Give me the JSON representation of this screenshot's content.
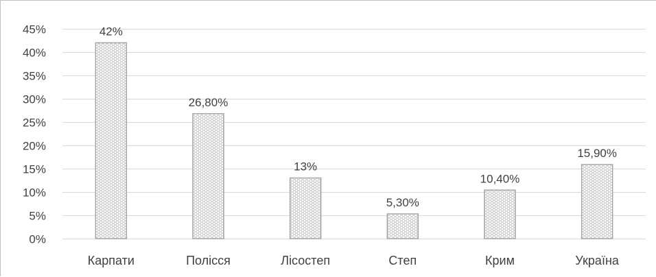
{
  "chart_data": {
    "type": "bar",
    "title": "",
    "xlabel": "",
    "ylabel": "",
    "categories": [
      "Карпати",
      "Полісся",
      "Лісостеп",
      "Степ",
      "Крим",
      "Україна"
    ],
    "values": [
      42,
      26.8,
      13,
      5.3,
      10.4,
      15.9
    ],
    "data_labels": [
      "42%",
      "26,80%",
      "13%",
      "5,30%",
      "10,40%",
      "15,90%"
    ],
    "ylim": [
      0,
      45
    ],
    "yticks": [
      0,
      5,
      10,
      15,
      20,
      25,
      30,
      35,
      40,
      45
    ],
    "ytick_labels": [
      "0%",
      "5%",
      "10%",
      "15%",
      "20%",
      "25%",
      "30%",
      "35%",
      "40%",
      "45%"
    ],
    "grid": true,
    "legend": "none",
    "colors": {
      "bar_fill_pattern": "#bfbfbf",
      "bar_border": "#a6a6a6",
      "grid": "#d9d9d9",
      "text": "#404040"
    }
  }
}
